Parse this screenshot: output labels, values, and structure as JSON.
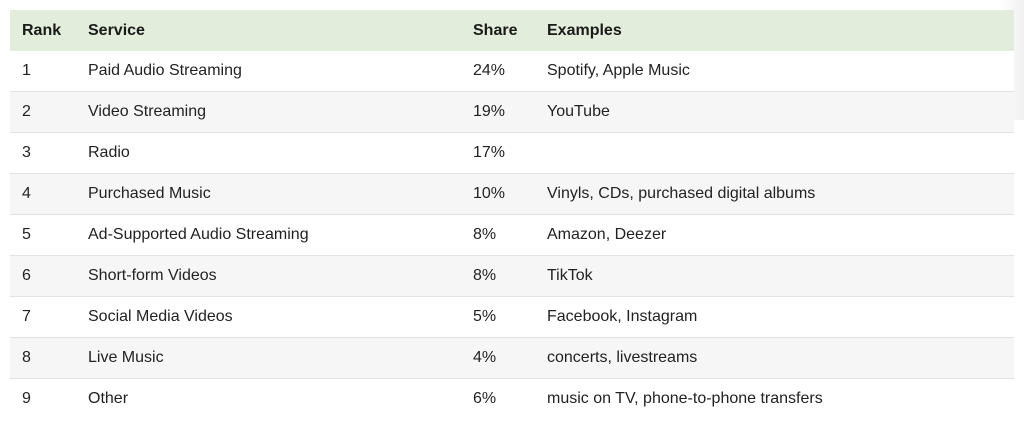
{
  "table": {
    "headers": {
      "rank": "Rank",
      "service": "Service",
      "share": "Share",
      "examples": "Examples"
    },
    "header_bg": "#e2eddb",
    "rows": [
      {
        "rank": "1",
        "service": "Paid Audio Streaming",
        "share": "24%",
        "examples": "Spotify, Apple Music"
      },
      {
        "rank": "2",
        "service": "Video Streaming",
        "share": "19%",
        "examples": "YouTube"
      },
      {
        "rank": "3",
        "service": "Radio",
        "share": "17%",
        "examples": ""
      },
      {
        "rank": "4",
        "service": "Purchased Music",
        "share": "10%",
        "examples": "Vinyls, CDs, purchased digital albums"
      },
      {
        "rank": "5",
        "service": "Ad-Supported Audio Streaming",
        "share": "8%",
        "examples": "Amazon, Deezer"
      },
      {
        "rank": "6",
        "service": "Short-form Videos",
        "share": "8%",
        "examples": "TikTok"
      },
      {
        "rank": "7",
        "service": "Social Media Videos",
        "share": "5%",
        "examples": "Facebook, Instagram"
      },
      {
        "rank": "8",
        "service": "Live Music",
        "share": "4%",
        "examples": "concerts, livestreams"
      },
      {
        "rank": "9",
        "service": "Other",
        "share": "6%",
        "examples": "music on TV, phone-to-phone transfers"
      }
    ]
  }
}
